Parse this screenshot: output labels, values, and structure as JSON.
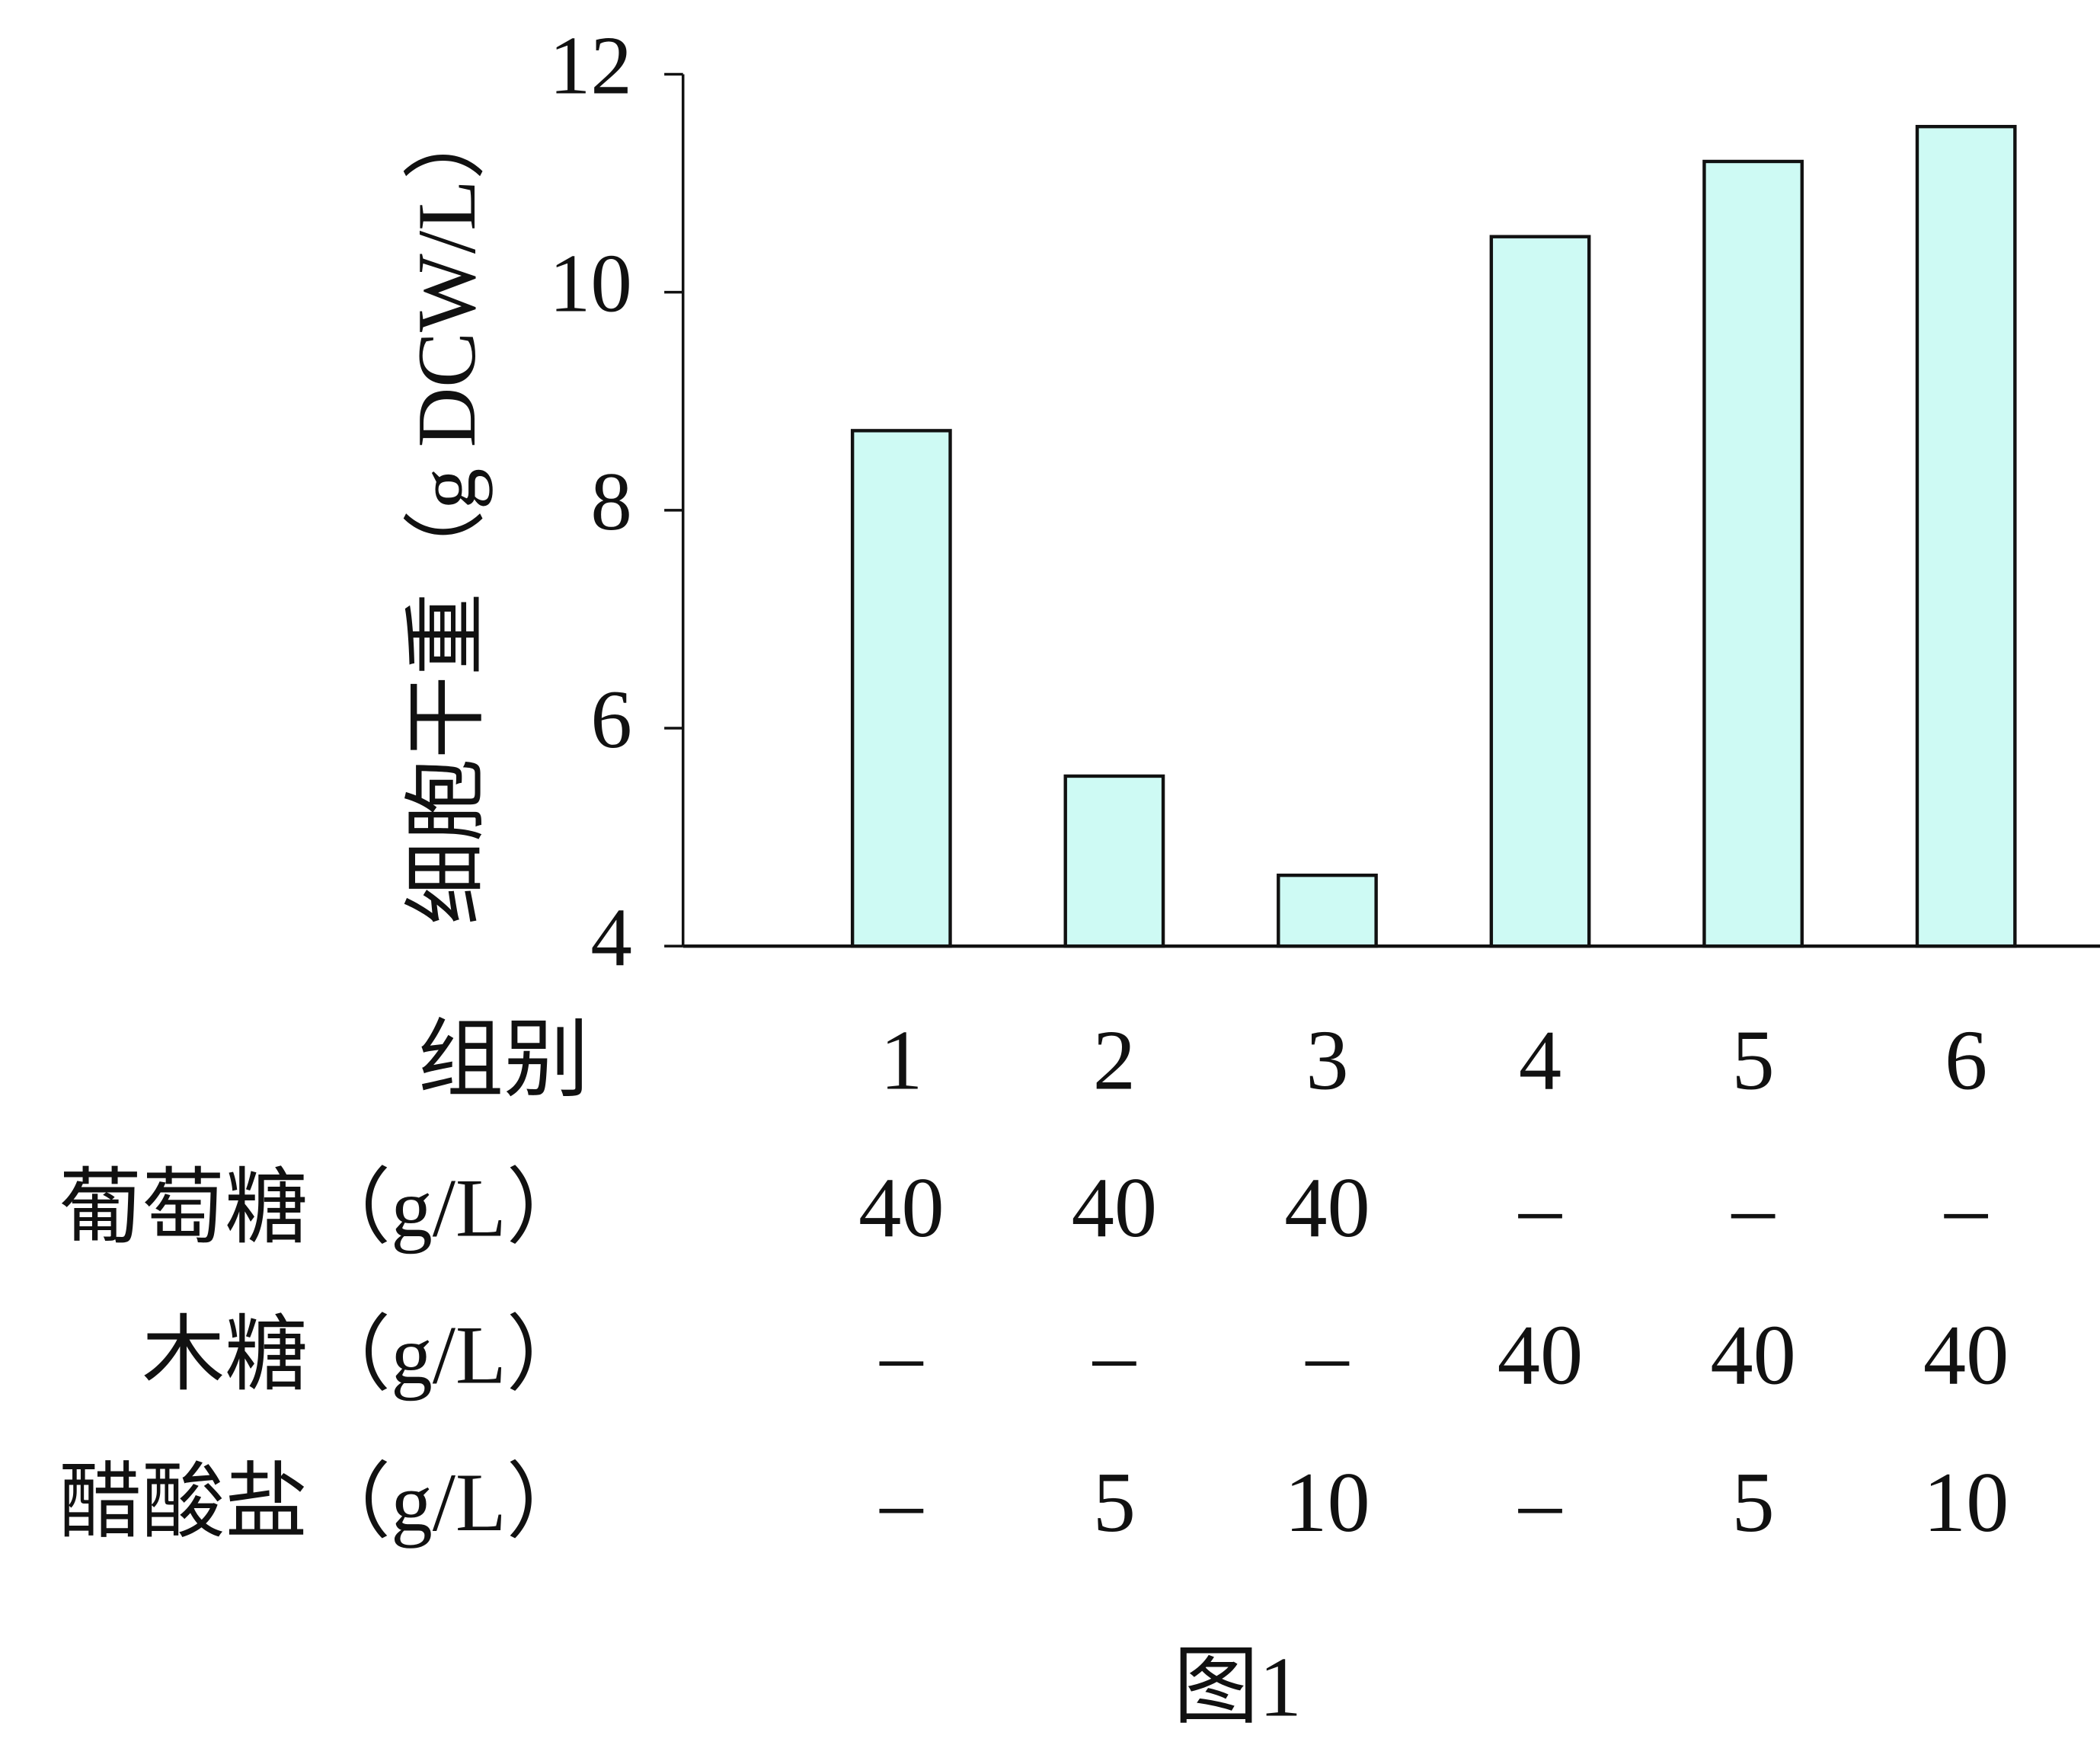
{
  "chart_data": {
    "type": "bar",
    "y_label": "细胞干重（g DCW/L）",
    "categories_label": "组别",
    "categories": [
      "1",
      "2",
      "3",
      "4",
      "5",
      "6"
    ],
    "values": [
      8.73,
      5.56,
      4.65,
      10.51,
      11.2,
      11.52
    ],
    "color": "#cefaf4",
    "ylim": [
      4,
      12
    ],
    "yticks": [
      4,
      6,
      8,
      10,
      12
    ],
    "grid": false,
    "table": [
      {
        "label": "葡萄糖（g/L）",
        "cells": [
          "40",
          "40",
          "40",
          "–",
          "–",
          "–"
        ]
      },
      {
        "label": "木糖（g/L）",
        "cells": [
          "–",
          "–",
          "–",
          "40",
          "40",
          "40"
        ]
      },
      {
        "label": "醋酸盐（g/L）",
        "cells": [
          "–",
          "5",
          "10",
          "–",
          "5",
          "10"
        ]
      }
    ],
    "caption": "图1"
  }
}
